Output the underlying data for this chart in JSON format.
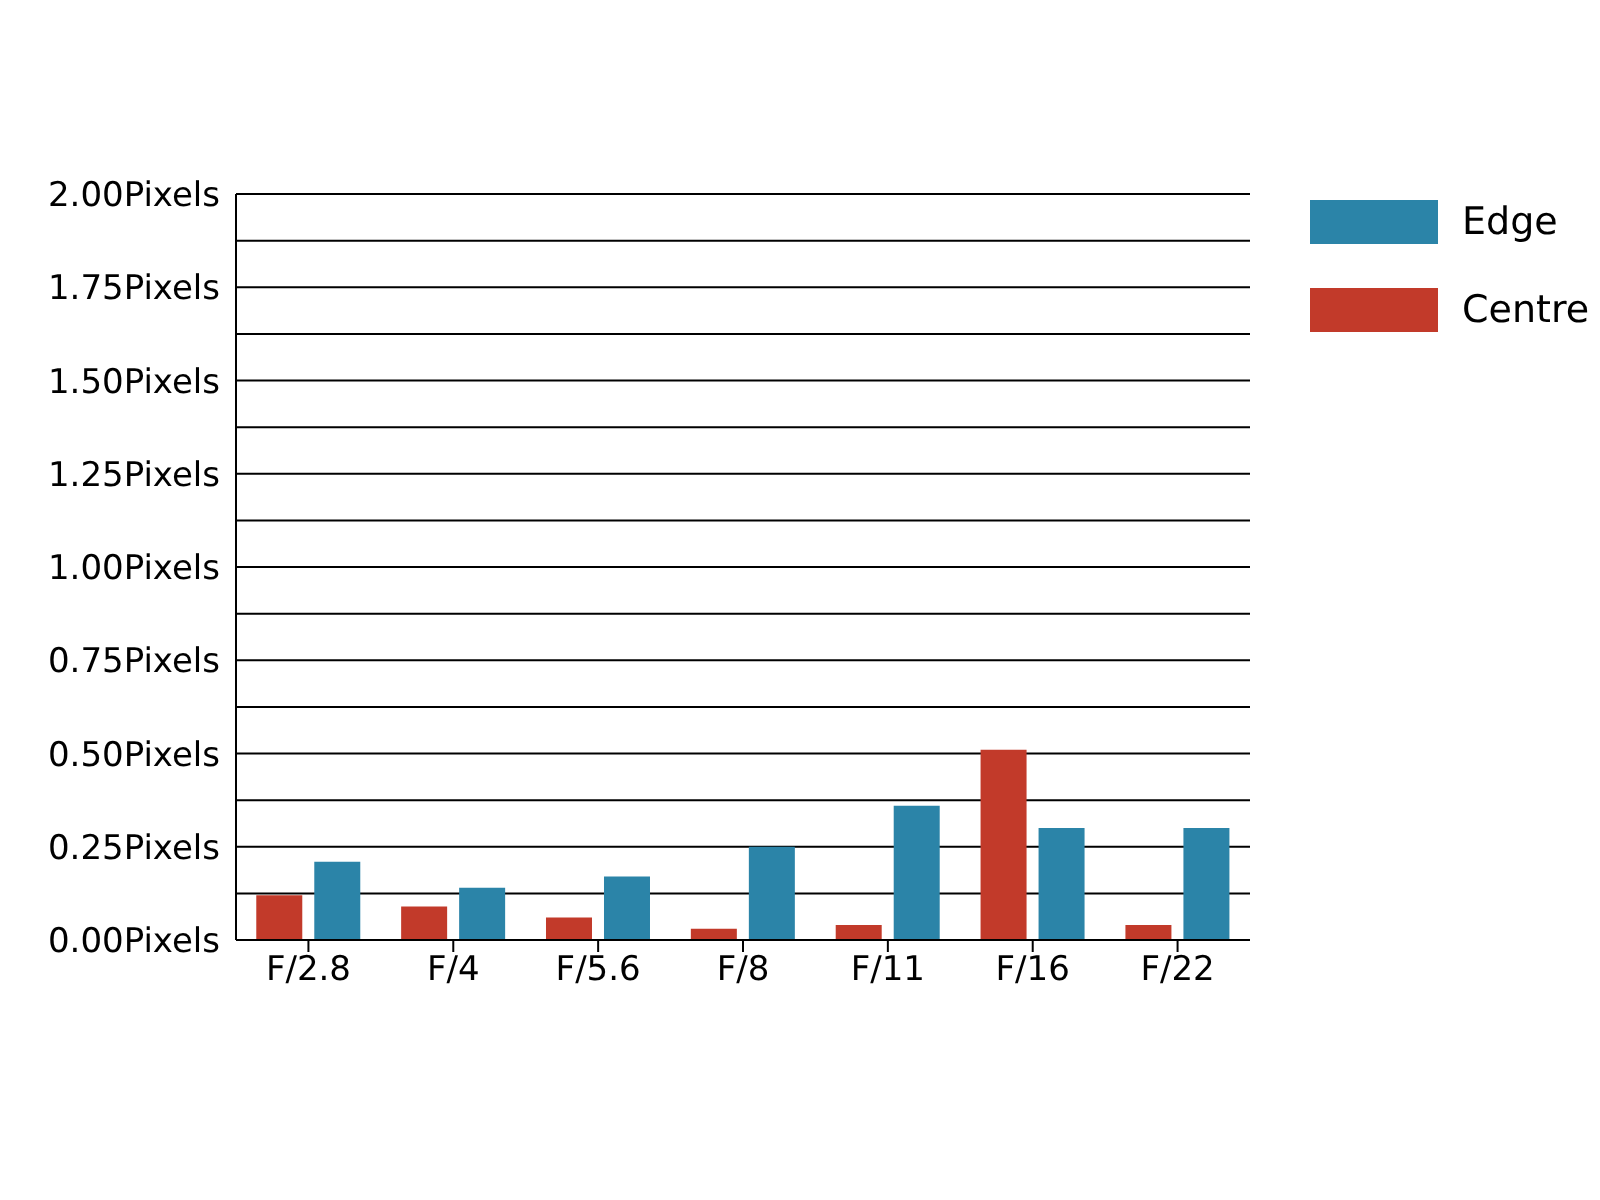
{
  "chart_data": {
    "type": "bar",
    "categories": [
      "F/2.8",
      "F/4",
      "F/5.6",
      "F/8",
      "F/11",
      "F/16",
      "F/22"
    ],
    "series": [
      {
        "name": "Centre",
        "color": "#c23a2a",
        "values": [
          0.12,
          0.09,
          0.06,
          0.03,
          0.04,
          0.51,
          0.04
        ]
      },
      {
        "name": "Edge",
        "color": "#2b84a8",
        "values": [
          0.21,
          0.14,
          0.17,
          0.25,
          0.36,
          0.3,
          0.3
        ]
      }
    ],
    "ylim": [
      0,
      2
    ],
    "yticks": [
      {
        "value": 0,
        "label": "0.00Pixels"
      },
      {
        "value": 0.125,
        "label": null
      },
      {
        "value": 0.25,
        "label": "0.25Pixels"
      },
      {
        "value": 0.375,
        "label": null
      },
      {
        "value": 0.5,
        "label": "0.50Pixels"
      },
      {
        "value": 0.625,
        "label": null
      },
      {
        "value": 0.75,
        "label": "0.75Pixels"
      },
      {
        "value": 0.875,
        "label": null
      },
      {
        "value": 1,
        "label": "1.00Pixels"
      },
      {
        "value": 1.125,
        "label": null
      },
      {
        "value": 1.25,
        "label": "1.25Pixels"
      },
      {
        "value": 1.375,
        "label": null
      },
      {
        "value": 1.5,
        "label": "1.50Pixels"
      },
      {
        "value": 1.625,
        "label": null
      },
      {
        "value": 1.75,
        "label": "1.75Pixels"
      },
      {
        "value": 1.875,
        "label": null
      },
      {
        "value": 2,
        "label": "2.00Pixels"
      }
    ],
    "grid": "y",
    "legend": "top right"
  }
}
